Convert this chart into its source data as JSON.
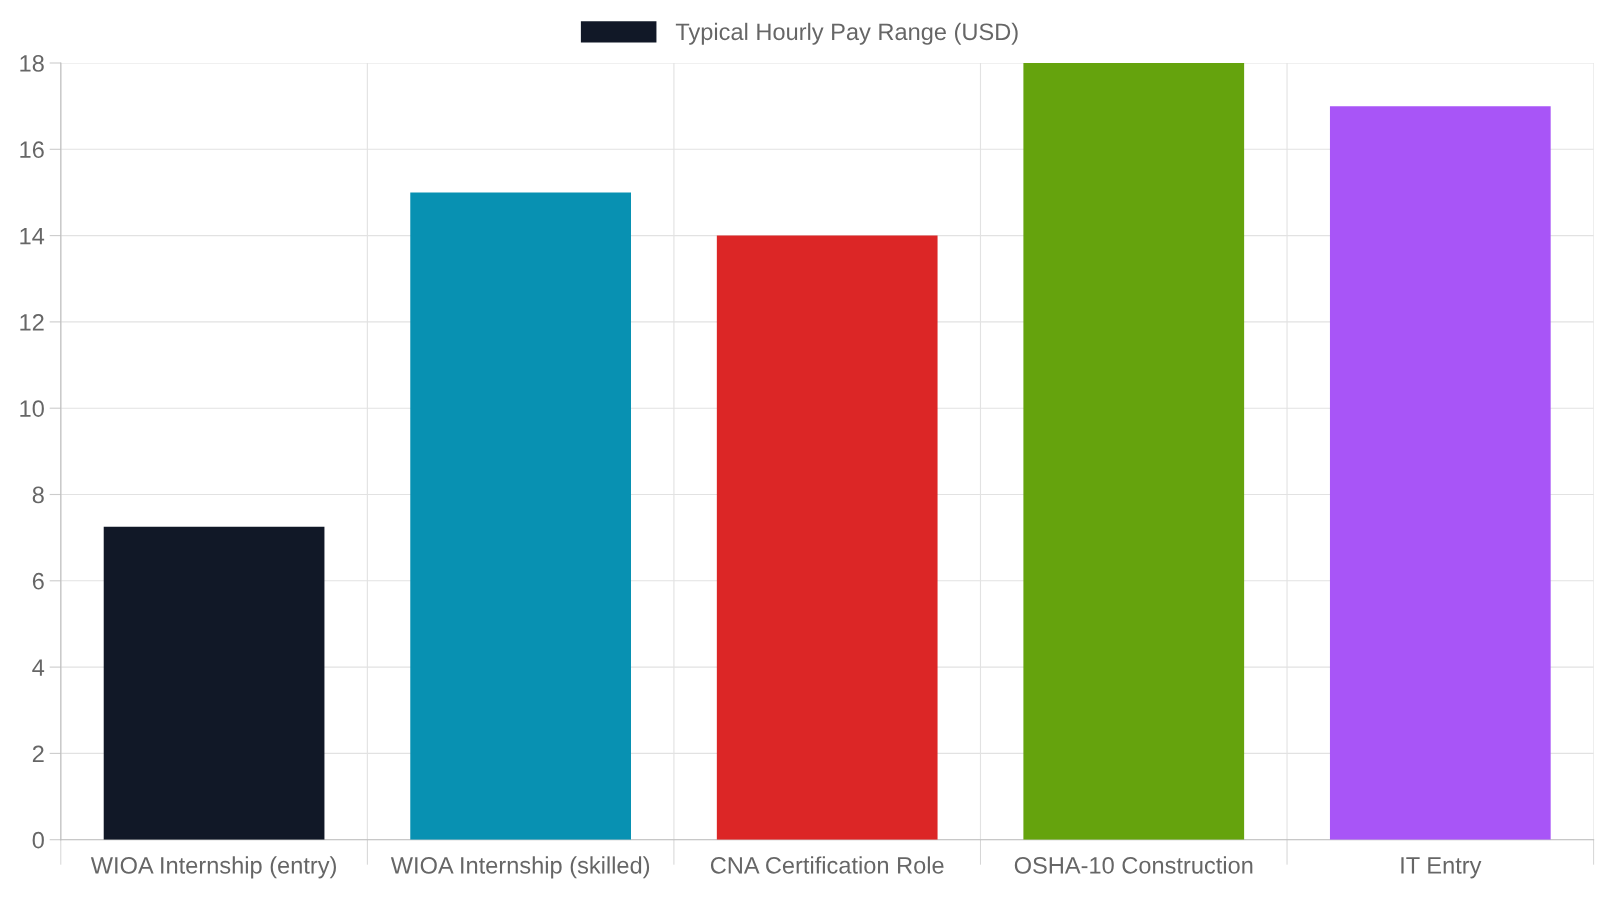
{
  "chart_data": {
    "type": "bar",
    "categories": [
      "WIOA Internship (entry)",
      "WIOA Internship (skilled)",
      "CNA Certification Role",
      "OSHA-10 Construction",
      "IT Entry"
    ],
    "series": [
      {
        "name": "Typical Hourly Pay Range (USD)",
        "colors": [
          "#111827",
          "#0891b2",
          "#dc2626",
          "#65a30d",
          "#a855f7"
        ],
        "values": [
          7.25,
          15,
          14,
          18,
          17
        ]
      }
    ],
    "ylim": [
      0,
      18
    ],
    "yticks": [
      0,
      2,
      4,
      6,
      8,
      10,
      12,
      14,
      16,
      18
    ],
    "grid": true,
    "legend": "top"
  }
}
